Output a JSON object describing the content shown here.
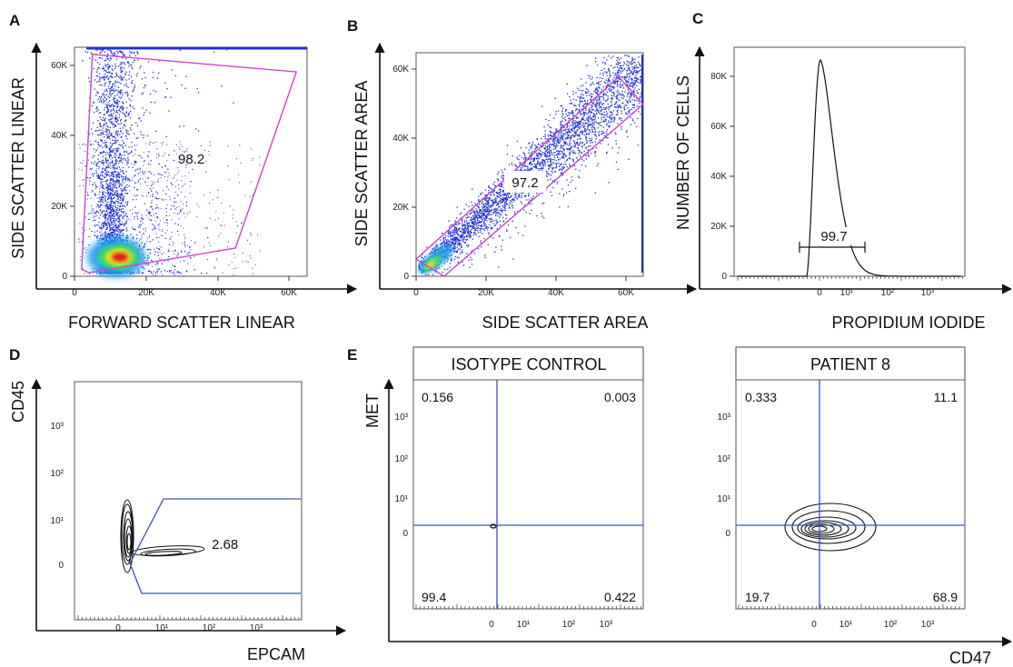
{
  "colors": {
    "gate": "#cc44cc",
    "quadrant": "#3a4fc0",
    "density_low": "#1f2fd6",
    "density_high": "#e8141a",
    "contour": "#111111"
  },
  "chart_data": [
    {
      "id": "A",
      "type": "scatter",
      "panel_label": "A",
      "xlabel": "FORWARD SCATTER LINEAR",
      "ylabel": "SIDE SCATTER LINEAR",
      "xlim": [
        0,
        65000
      ],
      "ylim": [
        0,
        65000
      ],
      "x_ticks": [
        "0",
        "20K",
        "40K",
        "60K"
      ],
      "y_ticks": [
        "0",
        "20K",
        "40K",
        "60K"
      ],
      "gate_percent": "98.2",
      "gate_polygon": [
        [
          2000,
          2000
        ],
        [
          5000,
          63000
        ],
        [
          62000,
          58000
        ],
        [
          45000,
          8000
        ],
        [
          4000,
          1000
        ]
      ]
    },
    {
      "id": "B",
      "type": "scatter",
      "panel_label": "B",
      "xlabel": "SIDE SCATTER AREA",
      "ylabel": "SIDE SCATTER AREA",
      "xlim": [
        0,
        65000
      ],
      "ylim": [
        0,
        65000
      ],
      "x_ticks": [
        "0",
        "20K",
        "40K",
        "60K"
      ],
      "y_ticks": [
        "0",
        "20K",
        "40K",
        "60K"
      ],
      "gate_percent": "97.2",
      "gate_polygon": [
        [
          0,
          5000
        ],
        [
          58000,
          58000
        ],
        [
          65000,
          50000
        ],
        [
          8000,
          0
        ]
      ]
    },
    {
      "id": "C",
      "type": "line",
      "panel_label": "C",
      "xlabel": "PROPIDIUM IODIDE",
      "ylabel": "NUMBER OF CELLS",
      "ylim": [
        0,
        90000
      ],
      "x_ticks": [
        "0",
        "10¹",
        "10²",
        "10³"
      ],
      "y_ticks": [
        "0",
        "20K",
        "40K",
        "60K",
        "80K"
      ],
      "gate_percent": "99.7",
      "histogram": {
        "peak_y": 85000
      }
    },
    {
      "id": "D",
      "type": "contour",
      "panel_label": "D",
      "xlabel": "EPCAM",
      "ylabel": "CD45",
      "x_ticks": [
        "0",
        "10¹",
        "10²",
        "10³"
      ],
      "y_ticks": [
        "0",
        "10¹",
        "10²",
        "10³"
      ],
      "gate_percent": "2.68"
    },
    {
      "id": "E",
      "type": "contour",
      "panel_label": "E",
      "xlabel": "CD47",
      "ylabel": "MET",
      "x_ticks": [
        "0",
        "10¹",
        "10²",
        "10³"
      ],
      "y_ticks": [
        "0",
        "10¹",
        "10²",
        "10³"
      ],
      "subplots": [
        {
          "title": "ISOTYPE CONTROL",
          "quadrants": {
            "ul": "0.156",
            "ur": "0.003",
            "ll": "99.4",
            "lr": "0.422"
          }
        },
        {
          "title": "PATIENT 8",
          "quadrants": {
            "ul": "0.333",
            "ur": "11.1",
            "ll": "19.7",
            "lr": "68.9"
          }
        }
      ]
    }
  ]
}
